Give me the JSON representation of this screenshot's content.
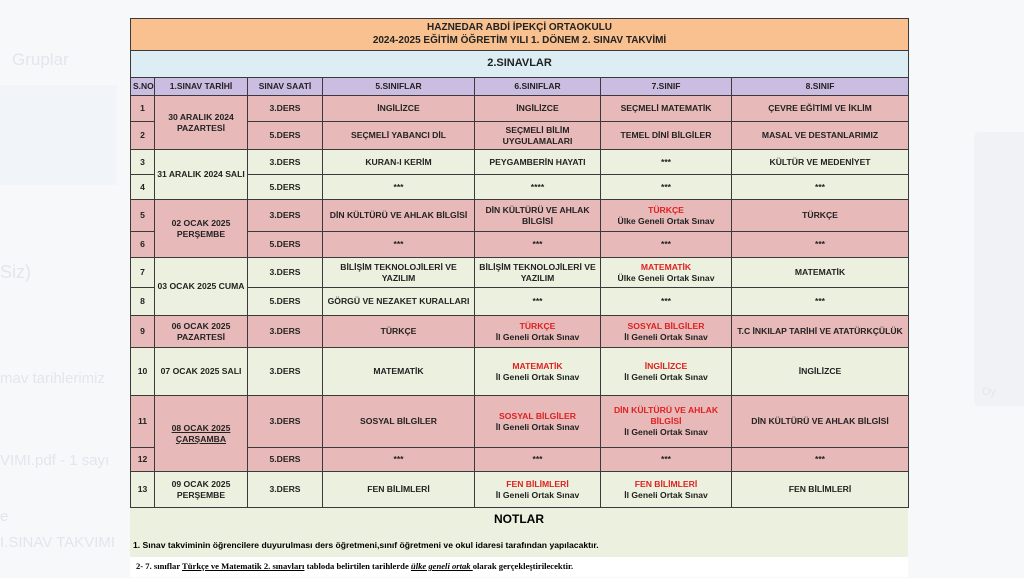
{
  "background": {
    "texts": [
      "Gruplar",
      "Siz)",
      "mav tarihlerimiz",
      "VIMI.pdf - 1 sayı",
      "e",
      "I.SINAV TAKVIMI",
      "Oy"
    ]
  },
  "document": {
    "title_line1": "HAZNEDAR ABDİ İPEKÇİ ORTAOKULU",
    "title_line2": "2024-2025 EĞİTİM ÖĞRETİM YILI 1. DÖNEM 2. SINAV  TAKVİMİ",
    "band": "2.SINAVLAR",
    "headers": [
      "S.NO",
      "1.SINAV TARİHİ",
      "SINAV SAATİ",
      "5.SINIFLAR",
      "6.SINIFLAR",
      "7.SINIF",
      "8.SINIF"
    ],
    "rows": [
      {
        "no": "1",
        "date": "30 ARALIK 2024 PAZARTESİ",
        "span": 2,
        "time": "3.DERS",
        "color": "pink",
        "cells": [
          {
            "t": "İNGİLİZCE"
          },
          {
            "t": "İNGİLİZCE"
          },
          {
            "t": "SEÇMELİ MATEMATİK"
          },
          {
            "t": "ÇEVRE EĞİTİMİ VE İKLİM"
          }
        ]
      },
      {
        "no": "2",
        "time": "5.DERS",
        "color": "pink",
        "cells": [
          {
            "t": "SEÇMELİ YABANCI DİL"
          },
          {
            "t": "SEÇMELİ BİLİM UYGULAMALARI"
          },
          {
            "t": "TEMEL DİNİ BİLGİLER"
          },
          {
            "t": "MASAL VE DESTANLARIMIZ"
          }
        ]
      },
      {
        "no": "3",
        "date": "31 ARALIK 2024 SALI",
        "span": 2,
        "time": "3.DERS",
        "color": "green",
        "cells": [
          {
            "t": "KURAN-I KERİM"
          },
          {
            "t": "PEYGAMBERİN HAYATI"
          },
          {
            "t": "***"
          },
          {
            "t": "KÜLTÜR VE MEDENİYET"
          }
        ]
      },
      {
        "no": "4",
        "time": "5.DERS",
        "color": "green",
        "cells": [
          {
            "t": "***"
          },
          {
            "t": "****"
          },
          {
            "t": "***"
          },
          {
            "t": "***"
          }
        ]
      },
      {
        "no": "5",
        "date": "02 OCAK 2025 PERŞEMBE",
        "span": 2,
        "time": "3.DERS",
        "color": "pink",
        "cells": [
          {
            "t": "DİN KÜLTÜRÜ VE AHLAK BİLGİSİ"
          },
          {
            "t": "DİN KÜLTÜRÜ VE AHLAK BİLGİSİ"
          },
          {
            "t": "TÜRKÇE",
            "red": true,
            "sub": "Ülke Geneli Ortak Sınav"
          },
          {
            "t": "TÜRKÇE"
          }
        ]
      },
      {
        "no": "6",
        "time": "5.DERS",
        "color": "pink",
        "cells": [
          {
            "t": "***"
          },
          {
            "t": "***"
          },
          {
            "t": "***"
          },
          {
            "t": "***"
          }
        ]
      },
      {
        "no": "7",
        "date": "03 OCAK 2025 CUMA",
        "span": 2,
        "time": "3.DERS",
        "color": "green",
        "cells": [
          {
            "t": "BİLİŞİM TEKNOLOJİLERİ VE YAZILIM"
          },
          {
            "t": "BİLİŞİM TEKNOLOJİLERİ VE YAZILIM"
          },
          {
            "t": "MATEMATİK",
            "red": true,
            "sub": "Ülke Geneli Ortak Sınav"
          },
          {
            "t": "MATEMATİK"
          }
        ]
      },
      {
        "no": "8",
        "time": "5.DERS",
        "color": "green",
        "cells": [
          {
            "t": "GÖRGÜ VE NEZAKET KURALLARI"
          },
          {
            "t": "***"
          },
          {
            "t": "***"
          },
          {
            "t": "***"
          }
        ]
      },
      {
        "no": "9",
        "date": "06 OCAK 2025 PAZARTESİ",
        "span": 1,
        "time": "3.DERS",
        "color": "pink",
        "cells": [
          {
            "t": "TÜRKÇE"
          },
          {
            "t": "TÜRKÇE",
            "red": true,
            "sub": "İl Geneli Ortak Sınav"
          },
          {
            "t": "SOSYAL BİLGİLER",
            "red": true,
            "sub": "İl Geneli Ortak Sınav"
          },
          {
            "t": "T.C İNKILAP TARİHİ VE ATATÜRKÇÜLÜK"
          }
        ]
      },
      {
        "no": "10",
        "date": "07 OCAK 2025 SALI",
        "span": 1,
        "time": "3.DERS",
        "color": "green",
        "cells": [
          {
            "t": "MATEMATİK"
          },
          {
            "t": "MATEMATİK",
            "red": true,
            "sub": "İl Geneli Ortak Sınav"
          },
          {
            "t": "İNGİLİZCE",
            "red": true,
            "sub": "İl Geneli Ortak Sınav"
          },
          {
            "t": "İNGİLİZCE"
          }
        ]
      },
      {
        "no": "11",
        "date": "08 OCAK 2025 ÇARŞAMBA",
        "span": 2,
        "underline": true,
        "time": "3.DERS",
        "color": "pink",
        "cells": [
          {
            "t": "SOSYAL BİLGİLER"
          },
          {
            "t": "SOSYAL BİLGİLER",
            "red": true,
            "sub": "İl Geneli Ortak Sınav"
          },
          {
            "t": "DİN KÜLTÜRÜ VE AHLAK BİLGİSİ",
            "red": true,
            "sub": "İl Geneli Ortak Sınav"
          },
          {
            "t": "DİN KÜLTÜRÜ VE AHLAK BİLGİSİ"
          }
        ]
      },
      {
        "no": "12",
        "time": "5.DERS",
        "color": "pink",
        "cells": [
          {
            "t": "***"
          },
          {
            "t": "***"
          },
          {
            "t": "***"
          },
          {
            "t": "***"
          }
        ]
      },
      {
        "no": "13",
        "date": "09 OCAK 2025 PERŞEMBE",
        "span": 1,
        "time": "3.DERS",
        "color": "green",
        "cells": [
          {
            "t": "FEN BİLİMLERİ"
          },
          {
            "t": "FEN BİLİMLERİ",
            "red": true,
            "sub": "İl Geneli Ortak Sınav"
          },
          {
            "t": "FEN BİLİMLERİ",
            "red": true,
            "sub": "İl Geneli Ortak Sınav"
          },
          {
            "t": "FEN BİLİMLERİ"
          }
        ]
      }
    ],
    "row_heights": [
      26,
      28,
      25,
      25,
      32,
      26,
      30,
      28,
      32,
      48,
      52,
      24,
      36
    ],
    "notes": {
      "heading": "NOTLAR",
      "note1": "1. Sınav takviminin öğrencilere duyurulması  ders öğretmeni,sınıf öğretmeni ve okul idaresi tarafından yapılacaktır.",
      "note2_a": "2- 7. sınıflar ",
      "note2_b": "Türkçe ve Matematik 2. sınavları",
      "note2_c": " tabloda belirtilen tarihlerde ",
      "note2_d": "ülke geneli ortak ",
      "note2_e": " olarak gerçekleştirilecektir."
    }
  },
  "colors": {
    "title": "#f8c18f",
    "band": "#dcedf3",
    "header": "#cbbde2",
    "pink": "#e7b9b9",
    "green": "#ebf1de",
    "red": "#e02020"
  }
}
